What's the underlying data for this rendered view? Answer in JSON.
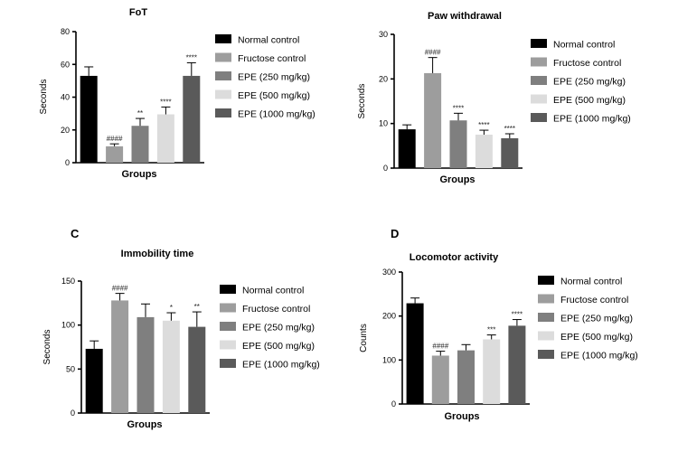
{
  "colors": {
    "Normal control": "#000000",
    "Fructose control": "#9d9d9d",
    "EPE (250 mg/kg)": "#7f7f7f",
    "EPE (500 mg/kg)": "#dcdcdc",
    "EPE (1000 mg/kg)": "#5a5a5a"
  },
  "chart_data": [
    {
      "type": "bar",
      "letter": "",
      "title": "FoT",
      "xlabel": "Groups",
      "ylabel": "Seconds",
      "ylim": [
        0,
        80
      ],
      "yticks": [
        0,
        20,
        40,
        60,
        80
      ],
      "legend": "right",
      "categories": [
        "Normal control",
        "Fructose control",
        "EPE (250 mg/kg)",
        "EPE (500 mg/kg)",
        "EPE (1000 mg/kg)"
      ],
      "values": [
        53,
        10,
        22.5,
        29.5,
        53
      ],
      "errors": [
        5.5,
        1.5,
        4.5,
        4.5,
        8
      ],
      "significance": [
        "",
        "####",
        "**",
        "****",
        "****"
      ]
    },
    {
      "type": "bar",
      "letter": "",
      "title": "Paw withdrawal",
      "xlabel": "Groups",
      "ylabel": "Seconds",
      "ylim": [
        0,
        30
      ],
      "yticks": [
        0,
        10,
        20,
        30
      ],
      "legend": "right",
      "categories": [
        "Normal control",
        "Fructose control",
        "EPE (250 mg/kg)",
        "EPE (500 mg/kg)",
        "EPE (1000 mg/kg)"
      ],
      "values": [
        8.7,
        21.3,
        10.7,
        7.5,
        6.7
      ],
      "errors": [
        1,
        3.5,
        1.6,
        1,
        1
      ],
      "significance": [
        "",
        "####",
        "****",
        "****",
        "****"
      ]
    },
    {
      "type": "bar",
      "letter": "C",
      "title": "Immobility time",
      "xlabel": "Groups",
      "ylabel": "Seconds",
      "ylim": [
        0,
        150
      ],
      "yticks": [
        0,
        50,
        100,
        150
      ],
      "legend": "right",
      "categories": [
        "Normal control",
        "Fructose control",
        "EPE (250 mg/kg)",
        "EPE (500 mg/kg)",
        "EPE (1000 mg/kg)"
      ],
      "values": [
        73,
        128,
        109,
        105,
        98
      ],
      "errors": [
        9,
        8,
        15,
        9,
        17
      ],
      "significance": [
        "",
        "####",
        "",
        "*",
        "**"
      ]
    },
    {
      "type": "bar",
      "letter": "D",
      "title": "Locomotor activity",
      "xlabel": "Groups",
      "ylabel": "Counts",
      "ylim": [
        0,
        300
      ],
      "yticks": [
        0,
        100,
        200,
        300
      ],
      "legend": "right",
      "categories": [
        "Normal control",
        "Fructose control",
        "EPE (250 mg/kg)",
        "EPE (500 mg/kg)",
        "EPE (1000 mg/kg)"
      ],
      "values": [
        229,
        110,
        122,
        147,
        178
      ],
      "errors": [
        12,
        10,
        13,
        10,
        14
      ],
      "significance": [
        "",
        "####",
        "",
        "***",
        "****"
      ]
    }
  ]
}
